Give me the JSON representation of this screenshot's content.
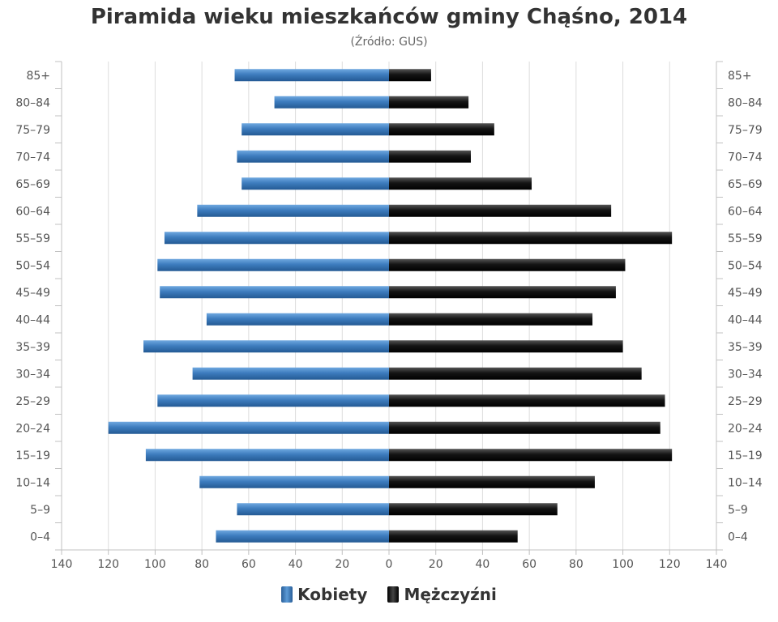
{
  "title": "Piramida wieku mieszkańców gminy Chąśno, 2014",
  "subtitle": "(Źródło: GUS)",
  "chart_data": {
    "type": "bar",
    "orientation": "horizontal",
    "categories": [
      "85+",
      "80–84",
      "75–79",
      "70–74",
      "65–69",
      "60–64",
      "55–59",
      "50–54",
      "45–49",
      "40–44",
      "35–39",
      "30–34",
      "25–29",
      "20–24",
      "15–19",
      "10–14",
      "5–9",
      "0–4"
    ],
    "series": [
      {
        "name": "Kobiety",
        "color": "#3d7cbe",
        "side": "left",
        "values": [
          66,
          49,
          63,
          65,
          63,
          82,
          96,
          99,
          98,
          78,
          105,
          84,
          99,
          120,
          104,
          81,
          65,
          74
        ]
      },
      {
        "name": "Mężczyźni",
        "color": "#111111",
        "side": "right",
        "values": [
          18,
          34,
          45,
          35,
          61,
          95,
          121,
          101,
          97,
          87,
          100,
          108,
          118,
          116,
          121,
          88,
          72,
          55
        ]
      }
    ],
    "xlim": [
      -140,
      140
    ],
    "x_ticks": [
      "140",
      "120",
      "100",
      "80",
      "60",
      "40",
      "20",
      "0",
      "20",
      "40",
      "60",
      "80",
      "100",
      "120",
      "140"
    ],
    "grid": true,
    "legend_position": "bottom"
  }
}
